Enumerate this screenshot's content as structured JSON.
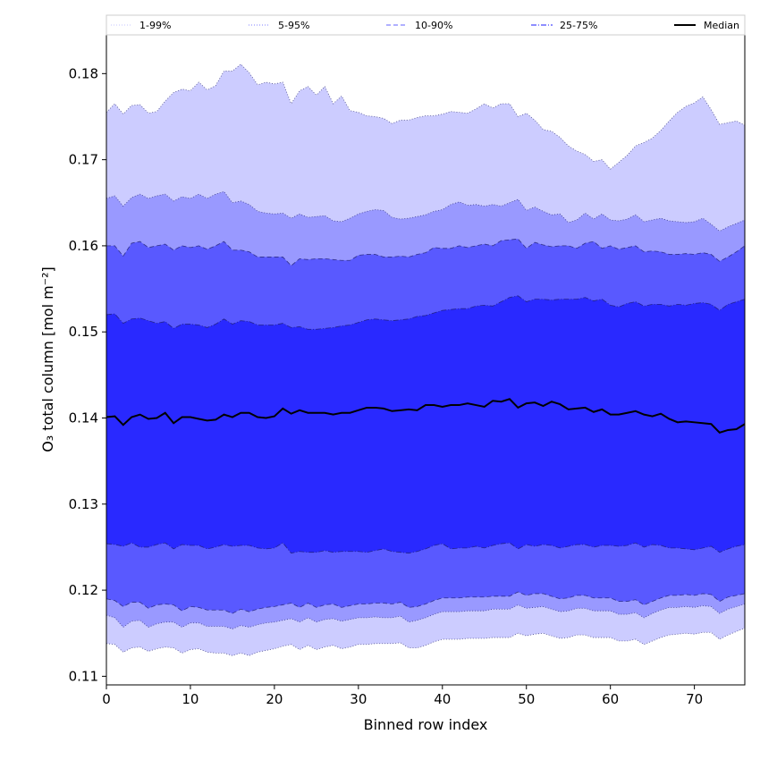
{
  "chart_data": {
    "type": "area",
    "xlabel": "Binned row index",
    "ylabel": "O₃ total column [mol m⁻²]",
    "xlim": [
      0,
      76
    ],
    "ylim": [
      0.109,
      0.1845
    ],
    "xticks": [
      0,
      10,
      20,
      30,
      40,
      50,
      60,
      70
    ],
    "yticks": [
      0.11,
      0.12,
      0.13,
      0.14,
      0.15,
      0.16,
      0.17,
      0.18
    ],
    "ytick_labels": [
      "0.11",
      "0.12",
      "0.13",
      "0.14",
      "0.15",
      "0.16",
      "0.17",
      "0.18"
    ],
    "grid": false,
    "legend_position": "top, above plot, single row",
    "x_step": 1,
    "bands": [
      {
        "name": "1-99%",
        "color": "#ccccff",
        "line_style": "dotted",
        "lower": [
          0.1138,
          0.1137,
          0.1128,
          0.1133,
          0.1134,
          0.1129,
          0.1132,
          0.1134,
          0.1133,
          0.1127,
          0.1131,
          0.1132,
          0.1128,
          0.1127,
          0.1127,
          0.1124,
          0.1127,
          0.1124,
          0.1128,
          0.113,
          0.1132,
          0.1135,
          0.1137,
          0.1131,
          0.1136,
          0.1131,
          0.1134,
          0.1136,
          0.1132,
          0.1134,
          0.1137,
          0.1137,
          0.1138,
          0.1138,
          0.1138,
          0.1139,
          0.1133,
          0.1133,
          0.1136,
          0.114,
          0.1143,
          0.1143,
          0.1143,
          0.1144,
          0.1144,
          0.1144,
          0.1145,
          0.1145,
          0.1145,
          0.115,
          0.1147,
          0.1149,
          0.115,
          0.1147,
          0.1144,
          0.1145,
          0.1148,
          0.1148,
          0.1145,
          0.1145,
          0.1145,
          0.1141,
          0.1141,
          0.1143,
          0.1137,
          0.1141,
          0.1145,
          0.1148,
          0.1149,
          0.115,
          0.1149,
          0.1151,
          0.1151,
          0.1143,
          0.1148,
          0.1152,
          0.1156
        ],
        "upper": [
          0.1755,
          0.1765,
          0.1753,
          0.1763,
          0.1764,
          0.1754,
          0.1756,
          0.1768,
          0.1778,
          0.1782,
          0.178,
          0.179,
          0.1781,
          0.1786,
          0.1803,
          0.1803,
          0.1811,
          0.1801,
          0.1787,
          0.179,
          0.1788,
          0.179,
          0.1765,
          0.178,
          0.1785,
          0.1775,
          0.1785,
          0.1765,
          0.1774,
          0.1757,
          0.1755,
          0.1751,
          0.175,
          0.1748,
          0.1742,
          0.1746,
          0.1746,
          0.1749,
          0.1751,
          0.1751,
          0.1753,
          0.1756,
          0.1755,
          0.1754,
          0.1759,
          0.1765,
          0.176,
          0.1765,
          0.1765,
          0.175,
          0.1754,
          0.1746,
          0.1735,
          0.1733,
          0.1726,
          0.1716,
          0.171,
          0.1706,
          0.1698,
          0.17,
          0.1689,
          0.1697,
          0.1705,
          0.1716,
          0.172,
          0.1725,
          0.1734,
          0.1745,
          0.1755,
          0.1762,
          0.1766,
          0.1773,
          0.1758,
          0.1741,
          0.1743,
          0.1745,
          0.174
        ]
      },
      {
        "name": "5-95%",
        "color": "#9999ff",
        "line_style": "dotted",
        "lower": [
          0.1171,
          0.1168,
          0.1157,
          0.1164,
          0.1165,
          0.1157,
          0.1161,
          0.1163,
          0.1163,
          0.1157,
          0.1162,
          0.1162,
          0.1158,
          0.1158,
          0.1158,
          0.1155,
          0.1159,
          0.1157,
          0.116,
          0.1162,
          0.1163,
          0.1165,
          0.1167,
          0.1163,
          0.1168,
          0.1163,
          0.1166,
          0.1167,
          0.1164,
          0.1166,
          0.1168,
          0.1168,
          0.1169,
          0.1168,
          0.1168,
          0.117,
          0.1163,
          0.1165,
          0.1168,
          0.1172,
          0.1175,
          0.1175,
          0.1175,
          0.1176,
          0.1176,
          0.1176,
          0.1178,
          0.1178,
          0.1178,
          0.1183,
          0.1179,
          0.118,
          0.1181,
          0.1178,
          0.1175,
          0.1176,
          0.1179,
          0.1179,
          0.1176,
          0.1176,
          0.1176,
          0.1172,
          0.1172,
          0.1174,
          0.1168,
          0.1173,
          0.1177,
          0.118,
          0.118,
          0.1181,
          0.118,
          0.1182,
          0.1181,
          0.1173,
          0.1178,
          0.1181,
          0.1184
        ],
        "upper": [
          0.1655,
          0.1658,
          0.1646,
          0.1656,
          0.166,
          0.1655,
          0.1658,
          0.166,
          0.1652,
          0.1657,
          0.1655,
          0.166,
          0.1655,
          0.166,
          0.1663,
          0.165,
          0.1652,
          0.1648,
          0.164,
          0.1638,
          0.1637,
          0.1638,
          0.1632,
          0.1637,
          0.1633,
          0.1634,
          0.1635,
          0.1629,
          0.1628,
          0.1632,
          0.1637,
          0.164,
          0.1642,
          0.1641,
          0.1633,
          0.1631,
          0.1632,
          0.1634,
          0.1636,
          0.164,
          0.1642,
          0.1648,
          0.1651,
          0.1647,
          0.1648,
          0.1646,
          0.1648,
          0.1646,
          0.165,
          0.1654,
          0.1641,
          0.1645,
          0.164,
          0.1636,
          0.1637,
          0.1627,
          0.163,
          0.1638,
          0.1631,
          0.1637,
          0.163,
          0.1629,
          0.1631,
          0.1636,
          0.1628,
          0.163,
          0.1632,
          0.1629,
          0.1628,
          0.1627,
          0.1628,
          0.1632,
          0.1625,
          0.1617,
          0.1622,
          0.1626,
          0.163
        ]
      },
      {
        "name": "10-90%",
        "color": "#5959ff",
        "line_style": "dashed",
        "lower": [
          0.119,
          0.1188,
          0.1181,
          0.1186,
          0.1186,
          0.1179,
          0.1183,
          0.1184,
          0.1183,
          0.1176,
          0.1181,
          0.118,
          0.1177,
          0.1177,
          0.1177,
          0.1173,
          0.1178,
          0.1175,
          0.1178,
          0.118,
          0.1181,
          0.1183,
          0.1185,
          0.118,
          0.1185,
          0.118,
          0.1183,
          0.1184,
          0.118,
          0.1182,
          0.1184,
          0.1184,
          0.1185,
          0.1185,
          0.1184,
          0.1186,
          0.118,
          0.1181,
          0.1184,
          0.1188,
          0.1191,
          0.1191,
          0.1191,
          0.1192,
          0.1192,
          0.1192,
          0.1193,
          0.1193,
          0.1193,
          0.1198,
          0.1194,
          0.1196,
          0.1196,
          0.1193,
          0.119,
          0.1191,
          0.1194,
          0.1194,
          0.1191,
          0.1191,
          0.1191,
          0.1187,
          0.1187,
          0.1189,
          0.1183,
          0.1187,
          0.1191,
          0.1194,
          0.1194,
          0.1195,
          0.1194,
          0.1196,
          0.1195,
          0.1187,
          0.1192,
          0.1194,
          0.1196
        ],
        "upper": [
          0.16,
          0.16,
          0.1588,
          0.1603,
          0.1605,
          0.1598,
          0.16,
          0.1602,
          0.1595,
          0.16,
          0.1598,
          0.16,
          0.1596,
          0.16,
          0.1605,
          0.1595,
          0.1595,
          0.1593,
          0.1587,
          0.1587,
          0.1587,
          0.1587,
          0.1577,
          0.1585,
          0.1584,
          0.1585,
          0.1585,
          0.1584,
          0.1583,
          0.1583,
          0.1589,
          0.159,
          0.159,
          0.1587,
          0.1587,
          0.1588,
          0.1587,
          0.159,
          0.1592,
          0.1598,
          0.1597,
          0.1597,
          0.16,
          0.1598,
          0.16,
          0.1602,
          0.16,
          0.1606,
          0.1607,
          0.1608,
          0.1597,
          0.1604,
          0.1601,
          0.1599,
          0.16,
          0.16,
          0.1597,
          0.1603,
          0.1605,
          0.1597,
          0.16,
          0.1596,
          0.1598,
          0.16,
          0.1593,
          0.1594,
          0.1593,
          0.159,
          0.159,
          0.1591,
          0.159,
          0.1592,
          0.159,
          0.1582,
          0.1587,
          0.1593,
          0.16
        ]
      },
      {
        "name": "25-75%",
        "color": "#2929ff",
        "line_style": "dashdot",
        "lower": [
          0.1254,
          0.1253,
          0.1251,
          0.1255,
          0.125,
          0.125,
          0.1253,
          0.1255,
          0.1248,
          0.1253,
          0.1252,
          0.1252,
          0.1248,
          0.125,
          0.1253,
          0.1251,
          0.1252,
          0.1252,
          0.1249,
          0.1248,
          0.1249,
          0.1255,
          0.1243,
          0.1245,
          0.1244,
          0.1244,
          0.1246,
          0.1244,
          0.1245,
          0.1245,
          0.1245,
          0.1244,
          0.1246,
          0.1248,
          0.1245,
          0.1244,
          0.1243,
          0.1245,
          0.1248,
          0.1252,
          0.1254,
          0.1248,
          0.1249,
          0.1249,
          0.1251,
          0.1249,
          0.1252,
          0.1254,
          0.1255,
          0.1248,
          0.1253,
          0.1251,
          0.1253,
          0.1252,
          0.1249,
          0.1251,
          0.1253,
          0.1253,
          0.125,
          0.1252,
          0.1252,
          0.1251,
          0.1252,
          0.1255,
          0.125,
          0.1253,
          0.1252,
          0.1249,
          0.1249,
          0.1248,
          0.1247,
          0.1249,
          0.1251,
          0.1244,
          0.1248,
          0.1251,
          0.1253
        ],
        "upper": [
          0.152,
          0.1521,
          0.151,
          0.1515,
          0.1516,
          0.1513,
          0.151,
          0.1512,
          0.1504,
          0.1509,
          0.1509,
          0.1508,
          0.1505,
          0.1509,
          0.1515,
          0.1509,
          0.1513,
          0.1512,
          0.1508,
          0.1508,
          0.1508,
          0.151,
          0.1505,
          0.1506,
          0.1503,
          0.1503,
          0.1504,
          0.1505,
          0.1507,
          0.1508,
          0.1511,
          0.1514,
          0.1515,
          0.1514,
          0.1513,
          0.1514,
          0.1515,
          0.1518,
          0.1519,
          0.1522,
          0.1525,
          0.1526,
          0.1527,
          0.1527,
          0.153,
          0.1531,
          0.153,
          0.1535,
          0.154,
          0.1542,
          0.1535,
          0.1538,
          0.1538,
          0.1537,
          0.1538,
          0.1538,
          0.1538,
          0.154,
          0.1536,
          0.1538,
          0.1531,
          0.1529,
          0.1533,
          0.1535,
          0.153,
          0.1532,
          0.1532,
          0.153,
          0.1532,
          0.1531,
          0.1533,
          0.1534,
          0.1532,
          0.1525,
          0.1532,
          0.1535,
          0.1538
        ]
      }
    ],
    "median": {
      "name": "Median",
      "color": "#000000",
      "line_style": "solid",
      "values": [
        0.1401,
        0.1402,
        0.1392,
        0.1401,
        0.1404,
        0.1399,
        0.14,
        0.1406,
        0.1394,
        0.1401,
        0.1401,
        0.1399,
        0.1397,
        0.1398,
        0.1404,
        0.1401,
        0.1406,
        0.1406,
        0.1401,
        0.14,
        0.1402,
        0.1411,
        0.1405,
        0.1409,
        0.1406,
        0.1406,
        0.1406,
        0.1404,
        0.1406,
        0.1406,
        0.1409,
        0.1412,
        0.1412,
        0.1411,
        0.1408,
        0.1409,
        0.141,
        0.1409,
        0.1415,
        0.1415,
        0.1413,
        0.1415,
        0.1415,
        0.1417,
        0.1415,
        0.1413,
        0.142,
        0.1419,
        0.1422,
        0.1412,
        0.1417,
        0.1418,
        0.1414,
        0.1419,
        0.1416,
        0.141,
        0.1411,
        0.1412,
        0.1407,
        0.141,
        0.1404,
        0.1404,
        0.1406,
        0.1408,
        0.1404,
        0.1402,
        0.1405,
        0.1399,
        0.1395,
        0.1396,
        0.1395,
        0.1394,
        0.1393,
        0.1383,
        0.1386,
        0.1387,
        0.1393
      ]
    },
    "legend": [
      {
        "label": "1-99%",
        "color": "#d0d0ff",
        "style": "dotted"
      },
      {
        "label": "5-95%",
        "color": "#9999ff",
        "style": "dotted"
      },
      {
        "label": "10-90%",
        "color": "#8080ff",
        "style": "dashed"
      },
      {
        "label": "25-75%",
        "color": "#4b4bff",
        "style": "dashdot"
      },
      {
        "label": "Median",
        "color": "#000000",
        "style": "solid"
      }
    ]
  }
}
